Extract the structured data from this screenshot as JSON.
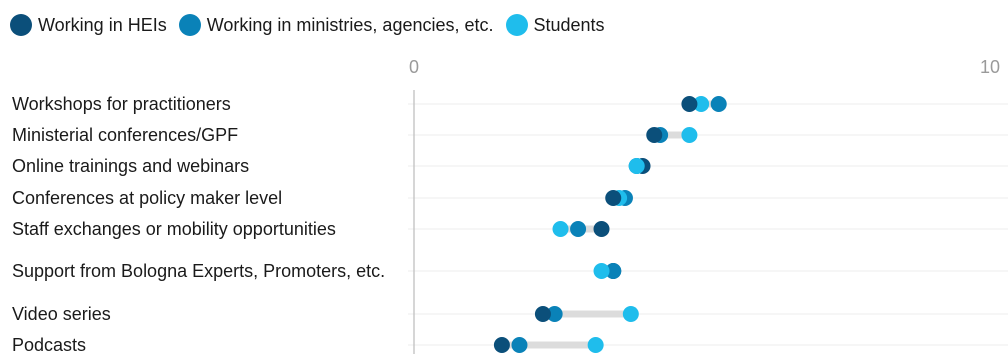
{
  "chart_data": {
    "type": "dot",
    "x_ticks": [
      "0",
      "10"
    ],
    "xlim": [
      0,
      10
    ],
    "grid": true,
    "legend_placement": "top-left",
    "categories": [
      "Workshops for practitioners",
      "Ministerial conferences/GPF",
      "Online trainings and webinars",
      "Conferences at policy maker level",
      "Staff exchanges or mobility opportunities",
      "Support from Bologna Experts, Promoters, etc.",
      "Video series",
      "Podcasts"
    ],
    "series": [
      {
        "name": "Working in HEIs",
        "color": "#0b4f7a",
        "values": [
          4.7,
          4.1,
          3.9,
          3.4,
          3.2,
          3.4,
          2.2,
          1.5
        ]
      },
      {
        "name": "Working in ministries, agencies, etc.",
        "color": "#0a82b8",
        "values": [
          5.2,
          4.2,
          3.8,
          3.6,
          2.8,
          3.4,
          2.4,
          1.8
        ]
      },
      {
        "name": "Students",
        "color": "#1fbdec",
        "values": [
          4.9,
          4.7,
          3.8,
          3.5,
          2.5,
          3.2,
          3.7,
          3.1
        ]
      }
    ]
  }
}
